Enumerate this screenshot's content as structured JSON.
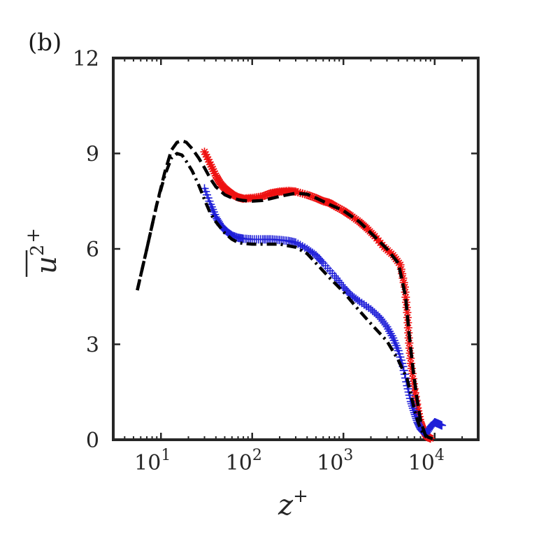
{
  "chart_data": {
    "type": "scatter",
    "panel_label": "(b)",
    "xlabel": "z",
    "xlabel_sup": "+",
    "ylabel": "u",
    "ylabel_sup2": "2",
    "ylabel_sup": "+",
    "xscale": "log",
    "xlim": [
      3,
      30000
    ],
    "ylim": [
      0,
      12
    ],
    "grid": false,
    "box": true,
    "x_ticks": [
      {
        "value": 10,
        "base": "10",
        "exp": "1"
      },
      {
        "value": 100,
        "base": "10",
        "exp": "2"
      },
      {
        "value": 1000,
        "base": "10",
        "exp": "3"
      },
      {
        "value": 10000,
        "base": "10",
        "exp": "4"
      }
    ],
    "y_ticks": [
      {
        "value": 0,
        "label": "0"
      },
      {
        "value": 3,
        "label": "3"
      },
      {
        "value": 6,
        "label": "6"
      },
      {
        "value": 9,
        "label": "9"
      },
      {
        "value": 12,
        "label": "12"
      }
    ],
    "series": [
      {
        "name": "red-star-data",
        "style": "markers",
        "marker": "asterisk",
        "color": "#ee1111",
        "x": [
          30,
          35,
          40,
          45,
          50,
          55,
          60,
          70,
          80,
          100,
          130,
          160,
          200,
          250,
          300,
          400,
          500,
          600,
          700,
          800,
          1000,
          1200,
          1500,
          1800,
          2200,
          2800,
          3500,
          4200,
          4700,
          5000,
          5200,
          5500,
          6000,
          6500,
          7000,
          7500,
          8000,
          8500,
          9000
        ],
        "y": [
          9.05,
          8.65,
          8.3,
          8.05,
          7.9,
          7.8,
          7.72,
          7.62,
          7.58,
          7.6,
          7.65,
          7.75,
          7.8,
          7.82,
          7.8,
          7.7,
          7.6,
          7.5,
          7.45,
          7.35,
          7.2,
          7.05,
          6.85,
          6.65,
          6.4,
          6.05,
          5.8,
          5.5,
          4.8,
          4.0,
          3.2,
          2.4,
          1.6,
          1.0,
          0.55,
          0.3,
          0.15,
          0.08,
          0.04
        ]
      },
      {
        "name": "blue-plus-data",
        "style": "markers",
        "marker": "plus",
        "color": "#1f1fd8",
        "x": [
          30,
          35,
          40,
          45,
          50,
          55,
          60,
          70,
          80,
          100,
          130,
          160,
          200,
          250,
          300,
          400,
          500,
          600,
          800,
          1000,
          1200,
          1500,
          2000,
          2500,
          3000,
          3500,
          4000,
          4500,
          5000,
          5500,
          6000,
          6500,
          7000,
          7500,
          8000,
          9000,
          10000,
          11000,
          12000
        ],
        "y": [
          7.9,
          7.4,
          7.0,
          6.75,
          6.6,
          6.5,
          6.42,
          6.35,
          6.32,
          6.3,
          6.3,
          6.3,
          6.28,
          6.25,
          6.2,
          6.0,
          5.8,
          5.55,
          5.15,
          4.8,
          4.55,
          4.35,
          4.1,
          3.85,
          3.55,
          3.2,
          2.8,
          2.3,
          1.7,
          1.2,
          0.85,
          0.55,
          0.35,
          0.25,
          0.18,
          0.4,
          0.55,
          0.5,
          0.45
        ]
      },
      {
        "name": "dashed-reference",
        "style": "dashed",
        "color": "#000000",
        "x": [
          5.5,
          7,
          9,
          11,
          13,
          15,
          17,
          19,
          22,
          26,
          30,
          35,
          40,
          50,
          60,
          70,
          80,
          100,
          130,
          160,
          200,
          300,
          400,
          500,
          700,
          1000,
          1500,
          2000,
          3000,
          4000,
          4800,
          5300,
          5800,
          6400,
          7000,
          8000,
          9000
        ],
        "y": [
          4.7,
          6.0,
          7.4,
          8.4,
          9.1,
          9.35,
          9.4,
          9.35,
          9.15,
          8.85,
          8.55,
          8.2,
          7.95,
          7.7,
          7.6,
          7.55,
          7.52,
          7.5,
          7.52,
          7.58,
          7.65,
          7.75,
          7.72,
          7.6,
          7.4,
          7.2,
          6.85,
          6.5,
          6.0,
          5.55,
          4.5,
          3.2,
          2.2,
          1.3,
          0.6,
          0.1,
          0.03
        ]
      },
      {
        "name": "dash-dot-reference",
        "style": "dashdot",
        "color": "#000000",
        "x": [
          5.5,
          7,
          9,
          11,
          13,
          15,
          17,
          19,
          22,
          26,
          30,
          35,
          40,
          50,
          60,
          70,
          80,
          100,
          130,
          160,
          200,
          300,
          400,
          500,
          700,
          1000,
          1500,
          2000,
          3000,
          4000,
          5000,
          5500,
          6000,
          6500,
          7000,
          7500,
          8500,
          9500
        ],
        "y": [
          4.7,
          6.0,
          7.4,
          8.3,
          8.85,
          9.0,
          8.95,
          8.75,
          8.45,
          8.0,
          7.55,
          7.1,
          6.85,
          6.5,
          6.3,
          6.2,
          6.17,
          6.15,
          6.15,
          6.15,
          6.15,
          6.05,
          5.85,
          5.55,
          5.1,
          4.65,
          4.05,
          3.65,
          3.1,
          2.5,
          1.9,
          1.4,
          0.95,
          0.6,
          0.35,
          0.2,
          0.08,
          0.03
        ]
      }
    ]
  }
}
